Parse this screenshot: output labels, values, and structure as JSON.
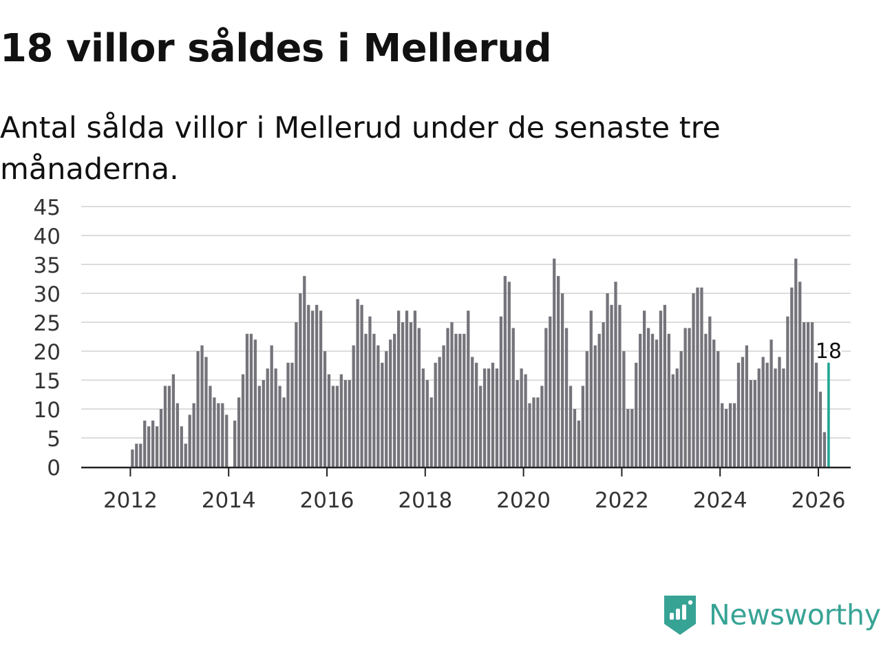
{
  "header": {
    "title": "18 villor såldes i Mellerud",
    "subtitle": "Antal sålda villor i Mellerud under de senaste tre månaderna."
  },
  "brand": {
    "name": "Newsworthy",
    "color": "#37a395"
  },
  "chart_data": {
    "type": "bar",
    "title": "18 villor såldes i Mellerud",
    "subtitle": "Antal sålda villor i Mellerud under de senaste tre månaderna.",
    "xlabel": "",
    "ylabel": "",
    "ylim": [
      0,
      45
    ],
    "yticks": [
      0,
      5,
      10,
      15,
      20,
      25,
      30,
      35,
      40,
      45
    ],
    "xticks": [
      "2012",
      "2014",
      "2016",
      "2018",
      "2020",
      "2022",
      "2024",
      "2026"
    ],
    "x_start": "2011-01",
    "frequency": "monthly, rolling three-month total",
    "grid": true,
    "bar_color": "#75747b",
    "highlight_color": "#1fa595",
    "values": [
      0,
      0,
      0,
      0,
      0,
      0,
      0,
      0,
      0,
      0,
      0,
      0,
      3,
      4,
      4,
      8,
      7,
      8,
      7,
      10,
      14,
      14,
      16,
      11,
      7,
      4,
      9,
      11,
      20,
      21,
      19,
      14,
      12,
      11,
      11,
      9,
      0,
      8,
      12,
      16,
      23,
      23,
      22,
      14,
      15,
      17,
      21,
      17,
      14,
      12,
      18,
      18,
      25,
      30,
      33,
      28,
      27,
      28,
      27,
      20,
      16,
      14,
      14,
      16,
      15,
      15,
      21,
      29,
      28,
      23,
      26,
      23,
      21,
      18,
      20,
      22,
      23,
      27,
      25,
      27,
      25,
      27,
      24,
      17,
      15,
      12,
      18,
      19,
      21,
      24,
      25,
      23,
      23,
      23,
      27,
      19,
      18,
      14,
      17,
      17,
      18,
      17,
      26,
      33,
      32,
      24,
      15,
      17,
      16,
      11,
      12,
      12,
      14,
      24,
      26,
      36,
      33,
      30,
      24,
      14,
      10,
      8,
      14,
      20,
      27,
      21,
      23,
      25,
      30,
      28,
      32,
      28,
      20,
      10,
      10,
      18,
      23,
      27,
      24,
      23,
      22,
      27,
      28,
      23,
      16,
      17,
      20,
      24,
      24,
      30,
      31,
      31,
      23,
      26,
      22,
      20,
      11,
      10,
      11,
      11,
      18,
      19,
      21,
      15,
      15,
      17,
      19,
      18,
      22,
      17,
      19,
      17,
      26,
      31,
      36,
      32,
      25,
      25,
      25,
      18,
      13,
      6,
      18
    ],
    "highlight": {
      "label": "18",
      "value": 18
    }
  }
}
